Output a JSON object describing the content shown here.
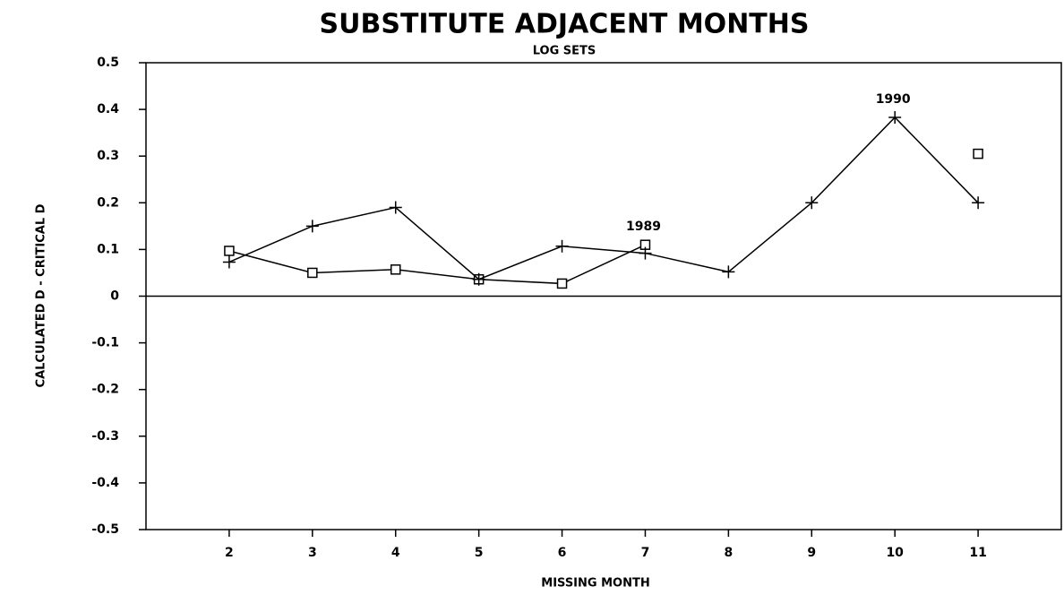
{
  "chart_data": {
    "type": "line",
    "title": "SUBSTITUTE ADJACENT MONTHS",
    "subtitle": "LOG SETS",
    "x_label": "MISSING MONTH",
    "y_label": "CALCULATED D - CRITICAL D",
    "x": [
      2,
      3,
      4,
      5,
      6,
      7,
      8,
      9,
      10,
      11
    ],
    "series": [
      {
        "name": "1989",
        "color": "#000000",
        "marker": "square",
        "values": [
          0.097,
          0.05,
          0.057,
          0.036,
          0.027,
          0.11,
          null,
          null,
          null,
          0.305
        ]
      },
      {
        "name": "1990",
        "color": "#000000",
        "marker": "plus",
        "values": [
          0.073,
          0.15,
          0.19,
          0.036,
          0.107,
          0.092,
          0.052,
          0.2,
          0.383,
          0.2
        ]
      }
    ],
    "xlim": [
      1,
      12
    ],
    "xticks": [
      2,
      3,
      4,
      5,
      6,
      7,
      8,
      9,
      10,
      11
    ],
    "ylim": [
      -0.5,
      0.5
    ],
    "yticks": [
      -0.5,
      -0.4,
      -0.3,
      -0.2,
      -0.1,
      0,
      0.1,
      0.2,
      0.3,
      0.4,
      0.5
    ],
    "zero_line": true
  }
}
